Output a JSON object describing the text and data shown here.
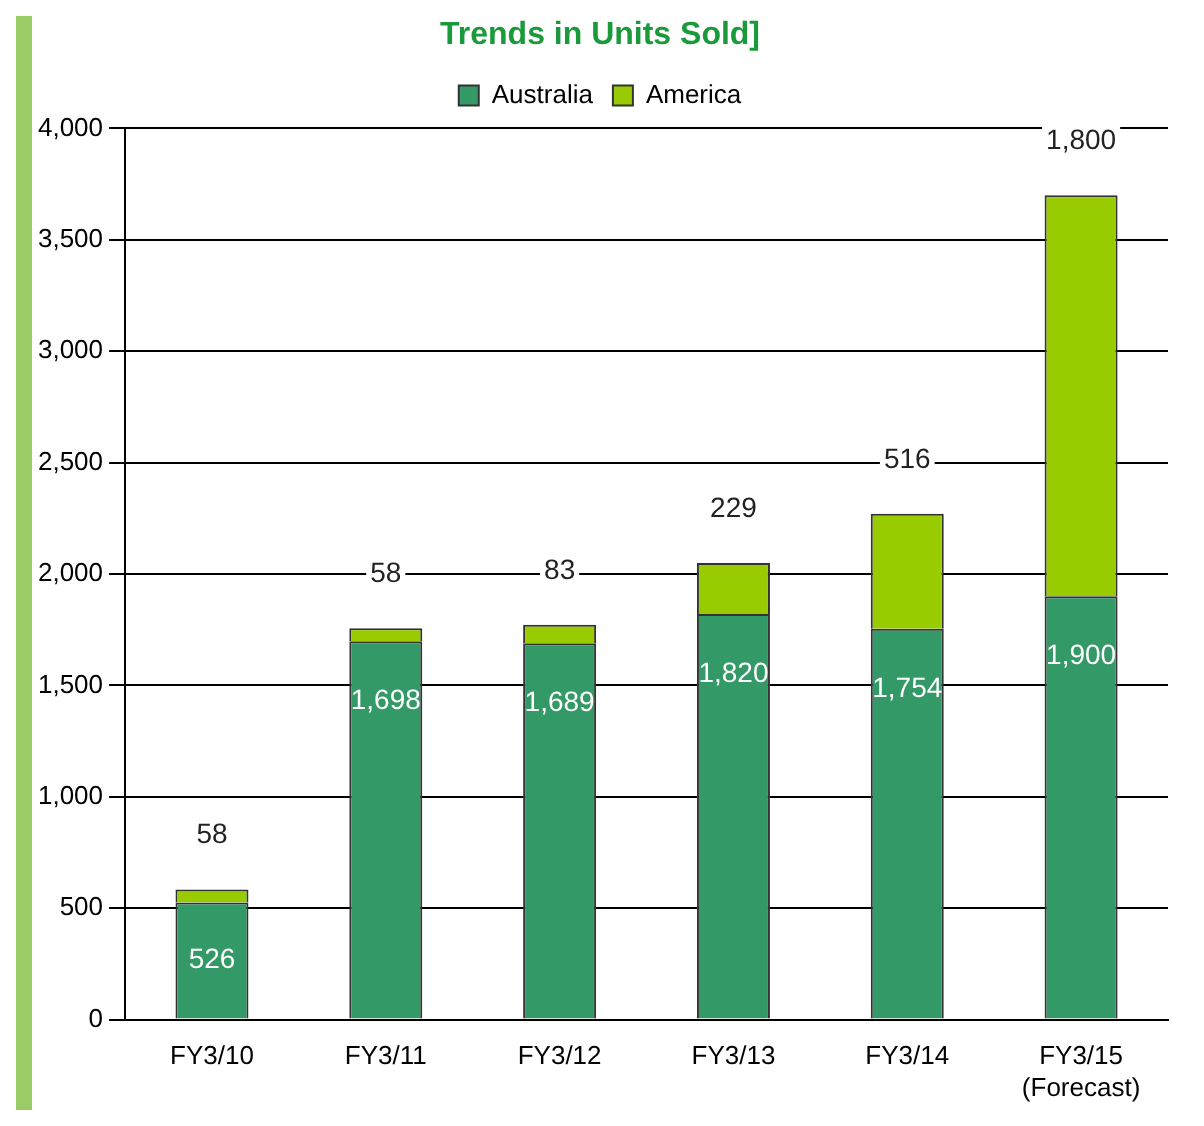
{
  "chart_data": {
    "type": "bar",
    "title": "Trends in Units Sold]",
    "categories": [
      "FY3/10",
      "FY3/11",
      "FY3/12",
      "FY3/13",
      "FY3/14",
      "FY3/15\n(Forecast)"
    ],
    "series": [
      {
        "name": "Australia",
        "color": "#339966",
        "values": [
          526,
          1698,
          1689,
          1820,
          1754,
          1900
        ],
        "value_labels": [
          "526",
          "1,698",
          "1,689",
          "1,820",
          "1,754",
          "1,900"
        ]
      },
      {
        "name": "America",
        "color": "#99cc00",
        "values": [
          58,
          58,
          83,
          229,
          516,
          1800
        ],
        "value_labels": [
          "58",
          "58",
          "83",
          "229",
          "516",
          "1,800"
        ]
      }
    ],
    "stacked": true,
    "ylim": [
      0,
      4000
    ],
    "yticks": [
      0,
      500,
      {
        "value": 1000,
        "label": "1,000"
      },
      {
        "value": 1500,
        "label": "1,500"
      },
      {
        "value": 2000,
        "label": "2,000"
      },
      {
        "value": 2500,
        "label": "2,500"
      },
      {
        "value": 3000,
        "label": "3,000"
      },
      {
        "value": 3500,
        "label": "3,500"
      },
      {
        "value": 4000,
        "label": "4,000"
      }
    ],
    "grid": "y",
    "legend": "top"
  }
}
